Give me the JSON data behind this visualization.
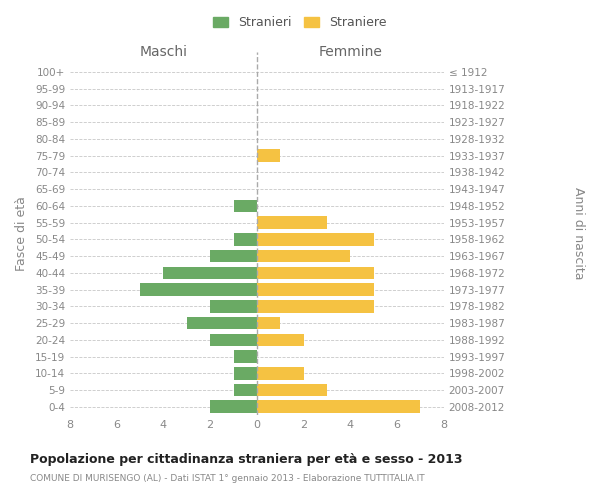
{
  "age_groups": [
    "100+",
    "95-99",
    "90-94",
    "85-89",
    "80-84",
    "75-79",
    "70-74",
    "65-69",
    "60-64",
    "55-59",
    "50-54",
    "45-49",
    "40-44",
    "35-39",
    "30-34",
    "25-29",
    "20-24",
    "15-19",
    "10-14",
    "5-9",
    "0-4"
  ],
  "birth_years": [
    "≤ 1912",
    "1913-1917",
    "1918-1922",
    "1923-1927",
    "1928-1932",
    "1933-1937",
    "1938-1942",
    "1943-1947",
    "1948-1952",
    "1953-1957",
    "1958-1962",
    "1963-1967",
    "1968-1972",
    "1973-1977",
    "1978-1982",
    "1983-1987",
    "1988-1992",
    "1993-1997",
    "1998-2002",
    "2003-2007",
    "2008-2012"
  ],
  "maschi": [
    0,
    0,
    0,
    0,
    0,
    0,
    0,
    0,
    1,
    0,
    1,
    2,
    4,
    5,
    2,
    3,
    2,
    1,
    1,
    1,
    2
  ],
  "femmine": [
    0,
    0,
    0,
    0,
    0,
    1,
    0,
    0,
    0,
    3,
    5,
    4,
    5,
    5,
    5,
    1,
    2,
    0,
    2,
    3,
    7
  ],
  "maschi_color": "#6aaa64",
  "femmine_color": "#f5c242",
  "grid_color": "#c8c8c8",
  "title": "Popolazione per cittadinanza straniera per età e sesso - 2013",
  "subtitle": "COMUNE DI MURISENGO (AL) - Dati ISTAT 1° gennaio 2013 - Elaborazione TUTTITALIA.IT",
  "legend_maschi": "Stranieri",
  "legend_femmine": "Straniere",
  "xlabel_left": "Maschi",
  "xlabel_right": "Femmine",
  "ylabel_left": "Fasce di età",
  "ylabel_right": "Anni di nascita",
  "xlim": 8,
  "background_color": "#ffffff",
  "center_line_color": "#aaaaaa"
}
